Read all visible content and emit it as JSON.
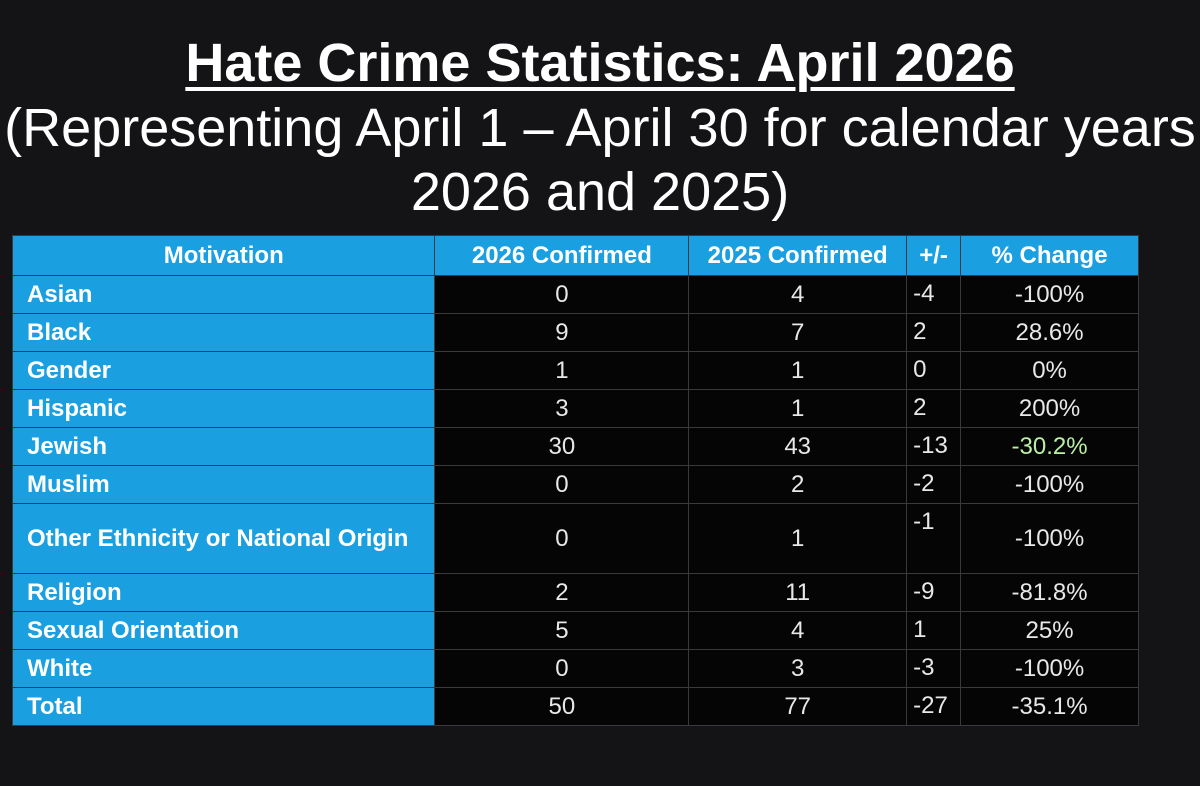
{
  "title": "Hate Crime Statistics: April 2026",
  "subtitle": "(Representing April 1 – April 30 for calendar years 2026 and 2025)",
  "table": {
    "headers": [
      "Motivation",
      "2026 Confirmed",
      "2025 Confirmed",
      "+/-",
      "% Change"
    ],
    "rows": [
      {
        "motivation": "Asian",
        "y2026": "0",
        "y2025": "4",
        "diff": "-4",
        "pct": "-100%"
      },
      {
        "motivation": "Black",
        "y2026": "9",
        "y2025": "7",
        "diff": "2",
        "pct": "28.6%"
      },
      {
        "motivation": "Gender",
        "y2026": "1",
        "y2025": "1",
        "diff": "0",
        "pct": "0%"
      },
      {
        "motivation": "Hispanic",
        "y2026": "3",
        "y2025": "1",
        "diff": "2",
        "pct": "200%"
      },
      {
        "motivation": "Jewish",
        "y2026": "30",
        "y2025": "43",
        "diff": "-13",
        "pct": "-30.2%"
      },
      {
        "motivation": "Muslim",
        "y2026": "0",
        "y2025": "2",
        "diff": "-2",
        "pct": "-100%"
      },
      {
        "motivation": "Other Ethnicity or National Origin",
        "y2026": "0",
        "y2025": "1",
        "diff": "-1",
        "pct": "-100%"
      },
      {
        "motivation": "Religion",
        "y2026": "2",
        "y2025": "11",
        "diff": "-9",
        "pct": "-81.8%"
      },
      {
        "motivation": "Sexual Orientation",
        "y2026": "5",
        "y2025": "4",
        "diff": "1",
        "pct": "25%"
      },
      {
        "motivation": "White",
        "y2026": "0",
        "y2025": "3",
        "diff": "-3",
        "pct": "-100%"
      },
      {
        "motivation": "Total",
        "y2026": "50",
        "y2025": "77",
        "diff": "-27",
        "pct": "-35.1%"
      }
    ]
  },
  "colors": {
    "background": "#141417",
    "header_blue": "#1a9fe0",
    "cell_black": "#050505",
    "highlight_green": "#b9f0a6"
  }
}
